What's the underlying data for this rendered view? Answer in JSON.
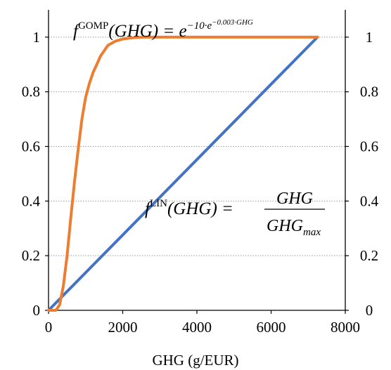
{
  "chart_data": {
    "type": "line",
    "xlabel": "GHG (g/EUR)",
    "xlim": [
      0,
      8000
    ],
    "ylim": [
      0,
      1.1
    ],
    "x_ticks": [
      "0",
      "2000",
      "4000",
      "6000",
      "8000"
    ],
    "y_ticks_left": [
      "0",
      "0.2",
      "0.4",
      "0.6",
      "0.8",
      "1"
    ],
    "y_ticks_right": [
      "0",
      "0.2",
      "0.4",
      "0.6",
      "0.8",
      "1"
    ],
    "grid": "horizontal dotted",
    "series": [
      {
        "color": "#4472c4",
        "x": [
          0,
          7250
        ],
        "y": [
          0,
          1
        ]
      },
      {
        "color": "#ed7d31",
        "x": [
          0,
          100,
          200,
          300,
          400,
          500,
          600,
          700,
          800,
          900,
          1000,
          1100,
          1200,
          1300,
          1400,
          1500,
          1600,
          1800,
          2000,
          2200,
          2400,
          2600,
          3000,
          3500,
          4000,
          5000,
          6000,
          7250
        ],
        "y": [
          0.0,
          0.0,
          0.0,
          0.02,
          0.09,
          0.2,
          0.34,
          0.47,
          0.59,
          0.7,
          0.78,
          0.83,
          0.87,
          0.9,
          0.93,
          0.95,
          0.97,
          0.985,
          0.993,
          0.997,
          0.999,
          1.0,
          1.0,
          1.0,
          1.0,
          1.0,
          1.0,
          1.0
        ]
      }
    ],
    "annotations": {
      "gomp": {
        "fn": "f",
        "sup": "GOMP",
        "arg": "(GHG) = e",
        "exp": "−10·e",
        "exp2": "−0.003·GHG"
      },
      "lin": {
        "fn": "f",
        "sup": "LIN",
        "arg": "(GHG) =",
        "num": "GHG",
        "den": "GHG",
        "den_sub": "max"
      }
    }
  }
}
